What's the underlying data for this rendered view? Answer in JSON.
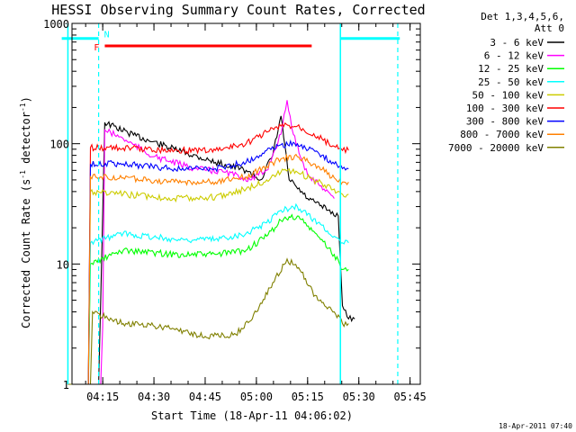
{
  "chart_data": {
    "type": "line",
    "title": "HESSI Observing Summary Count Rates, Corrected",
    "xlabel": "Start Time (18-Apr-11 04:06:02)",
    "ylabel": "Corrected Count Rate (s",
    "ylabel_sup1": "-1",
    "ylabel_mid": " detector",
    "ylabel_sup2": "-1",
    "ylabel_end": ")",
    "y_scale": "log",
    "ylim": [
      1,
      1000
    ],
    "y_ticks": [
      "1",
      "10",
      "100",
      "1000"
    ],
    "x_range_min": [
      4.1,
      5.8
    ],
    "x_ticks": [
      "04:15",
      "04:30",
      "04:45",
      "05:00",
      "05:15",
      "05:30",
      "05:45"
    ],
    "legend": {
      "header1": "Det 1,3,4,5,6,",
      "header2": "Att 0",
      "placement": "right, outside plot"
    },
    "series": [
      {
        "name": "3 - 6 keV",
        "color": "#000000",
        "points": [
          [
            4.08,
            0
          ],
          [
            4.23,
            0
          ],
          [
            4.24,
            5
          ],
          [
            4.26,
            150
          ],
          [
            4.4,
            118
          ],
          [
            4.6,
            90
          ],
          [
            4.8,
            70
          ],
          [
            4.95,
            60
          ],
          [
            5.02,
            50
          ],
          [
            5.08,
            80
          ],
          [
            5.12,
            170
          ],
          [
            5.16,
            50
          ],
          [
            5.25,
            35
          ],
          [
            5.35,
            28
          ],
          [
            5.4,
            25
          ],
          [
            5.42,
            4.5
          ],
          [
            5.45,
            3.5
          ],
          [
            5.48,
            3.5
          ]
        ]
      },
      {
        "name": "6 - 12 keV",
        "color": "#ff00ff",
        "points": [
          [
            4.08,
            0
          ],
          [
            4.24,
            0
          ],
          [
            4.25,
            3
          ],
          [
            4.26,
            130
          ],
          [
            4.35,
            110
          ],
          [
            4.5,
            78
          ],
          [
            4.7,
            62
          ],
          [
            4.85,
            58
          ],
          [
            4.97,
            50
          ],
          [
            5.05,
            60
          ],
          [
            5.12,
            120
          ],
          [
            5.15,
            230
          ],
          [
            5.18,
            120
          ],
          [
            5.25,
            55
          ],
          [
            5.35,
            40
          ],
          [
            5.38,
            35
          ]
        ]
      },
      {
        "name": "12 - 25 keV",
        "color": "#00ff00",
        "points": [
          [
            4.08,
            0
          ],
          [
            4.18,
            0
          ],
          [
            4.19,
            10
          ],
          [
            4.35,
            13
          ],
          [
            4.6,
            12
          ],
          [
            4.8,
            12
          ],
          [
            4.95,
            13
          ],
          [
            5.05,
            17
          ],
          [
            5.12,
            23
          ],
          [
            5.2,
            25
          ],
          [
            5.3,
            17
          ],
          [
            5.38,
            12
          ],
          [
            5.42,
            9
          ],
          [
            5.45,
            9
          ]
        ]
      },
      {
        "name": "25 - 50 keV",
        "color": "#00ffff",
        "points": [
          [
            4.08,
            0
          ],
          [
            4.18,
            0
          ],
          [
            4.19,
            15
          ],
          [
            4.35,
            18
          ],
          [
            4.6,
            16
          ],
          [
            4.8,
            16
          ],
          [
            4.95,
            18
          ],
          [
            5.05,
            22
          ],
          [
            5.12,
            28
          ],
          [
            5.2,
            30
          ],
          [
            5.3,
            22
          ],
          [
            5.38,
            17
          ],
          [
            5.42,
            15
          ],
          [
            5.45,
            15
          ]
        ]
      },
      {
        "name": "50 - 100 keV",
        "color": "#cccc00",
        "points": [
          [
            4.08,
            0
          ],
          [
            4.18,
            0
          ],
          [
            4.19,
            40
          ],
          [
            4.35,
            38
          ],
          [
            4.6,
            35
          ],
          [
            4.8,
            36
          ],
          [
            4.95,
            42
          ],
          [
            5.05,
            50
          ],
          [
            5.12,
            58
          ],
          [
            5.2,
            58
          ],
          [
            5.3,
            48
          ],
          [
            5.38,
            42
          ],
          [
            5.42,
            38
          ],
          [
            5.45,
            38
          ]
        ]
      },
      {
        "name": "100 - 300 keV",
        "color": "#ff0000",
        "points": [
          [
            4.08,
            0
          ],
          [
            4.18,
            0
          ],
          [
            4.19,
            93
          ],
          [
            4.35,
            92
          ],
          [
            4.6,
            88
          ],
          [
            4.8,
            88
          ],
          [
            4.95,
            100
          ],
          [
            5.05,
            125
          ],
          [
            5.12,
            140
          ],
          [
            5.2,
            140
          ],
          [
            5.3,
            115
          ],
          [
            5.38,
            95
          ],
          [
            5.42,
            88
          ],
          [
            5.45,
            88
          ]
        ]
      },
      {
        "name": "300 - 800 keV",
        "color": "#0000ff",
        "points": [
          [
            4.08,
            0
          ],
          [
            4.18,
            0
          ],
          [
            4.19,
            68
          ],
          [
            4.35,
            68
          ],
          [
            4.6,
            62
          ],
          [
            4.8,
            62
          ],
          [
            4.95,
            70
          ],
          [
            5.05,
            88
          ],
          [
            5.12,
            98
          ],
          [
            5.2,
            100
          ],
          [
            5.3,
            85
          ],
          [
            5.38,
            68
          ],
          [
            5.42,
            62
          ],
          [
            5.45,
            62
          ]
        ]
      },
      {
        "name": "800 - 7000 keV",
        "color": "#ff8000",
        "points": [
          [
            4.08,
            0
          ],
          [
            4.18,
            0
          ],
          [
            4.19,
            53
          ],
          [
            4.35,
            52
          ],
          [
            4.6,
            48
          ],
          [
            4.8,
            48
          ],
          [
            4.95,
            53
          ],
          [
            5.05,
            65
          ],
          [
            5.12,
            75
          ],
          [
            5.2,
            78
          ],
          [
            5.3,
            65
          ],
          [
            5.38,
            52
          ],
          [
            5.42,
            48
          ],
          [
            5.45,
            48
          ]
        ]
      },
      {
        "name": "7000 - 20000 keV",
        "color": "#808000",
        "points": [
          [
            4.08,
            0
          ],
          [
            4.19,
            0
          ],
          [
            4.2,
            4
          ],
          [
            4.35,
            3.2
          ],
          [
            4.55,
            3
          ],
          [
            4.75,
            2.5
          ],
          [
            4.9,
            2.6
          ],
          [
            5.0,
            4
          ],
          [
            5.08,
            7
          ],
          [
            5.15,
            11
          ],
          [
            5.22,
            8.5
          ],
          [
            5.3,
            5
          ],
          [
            5.38,
            4
          ],
          [
            5.42,
            3.2
          ],
          [
            5.45,
            3.2
          ]
        ]
      }
    ],
    "annotations": {
      "flag_F": {
        "label": "F",
        "color": "#ff0000",
        "level": 650,
        "x_min": [
          4.26,
          5.27
        ]
      },
      "flag_N": {
        "label": "N",
        "color": "#00ffff",
        "level": 750,
        "x_min": [
          4.05,
          4.23
        ],
        "x_min2": [
          5.41,
          5.7
        ]
      },
      "cyan_solid_x_min": [
        4.08,
        5.41
      ],
      "cyan_dashed_x_min": [
        4.23,
        5.69
      ]
    }
  },
  "footer_date": "18-Apr-2011 07:40"
}
